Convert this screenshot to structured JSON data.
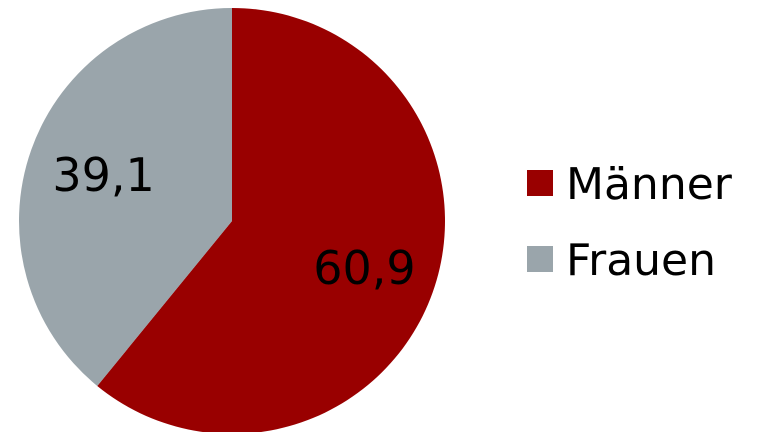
{
  "chart_data": {
    "type": "pie",
    "categories": [
      "Männer",
      "Frauen"
    ],
    "values": [
      60.9,
      39.1
    ],
    "value_labels": [
      "60,9",
      "39,1"
    ],
    "colors": [
      "#990000",
      "#9aa5ab"
    ],
    "start_angle_deg": 0,
    "direction": "clockwise",
    "legend_position": "right",
    "title": ""
  }
}
